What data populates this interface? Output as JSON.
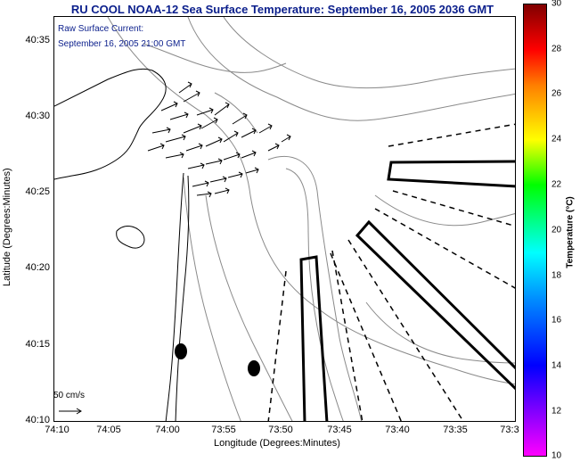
{
  "title": "RU COOL  NOAA-12  Sea Surface Temperature:  September 16, 2005 2036 GMT",
  "inset": {
    "line1": "Raw Surface Current:",
    "line2": "September 16, 2005 21:00 GMT"
  },
  "axes": {
    "ylabel": "Latitude (Degrees:Minutes)",
    "xlabel": "Longitude (Degrees:Minutes)",
    "yticks": [
      "40:35",
      "40:30",
      "40:25",
      "40:20",
      "40:15",
      "40:10"
    ],
    "xticks": [
      "74:10",
      "74:05",
      "74:00",
      "73:55",
      "73:50",
      "73:45",
      "73:40",
      "73:35",
      "73:3"
    ]
  },
  "colorbar": {
    "label": "Temperature (°C)",
    "ticks": [
      "30",
      "28",
      "26",
      "24",
      "22",
      "20",
      "18",
      "16",
      "14",
      "12",
      "10"
    ],
    "range": [
      10,
      30
    ],
    "colors": [
      "#ff00ff",
      "#8000ff",
      "#0000ff",
      "#00ffff",
      "#00ff00",
      "#ffff00",
      "#ff8000",
      "#ff0000",
      "#800000"
    ]
  },
  "scale": {
    "label": "50 cm/s"
  },
  "style": {
    "title_color": "#0b1f8c",
    "line_color": "#000000",
    "contour_color": "#888888"
  }
}
